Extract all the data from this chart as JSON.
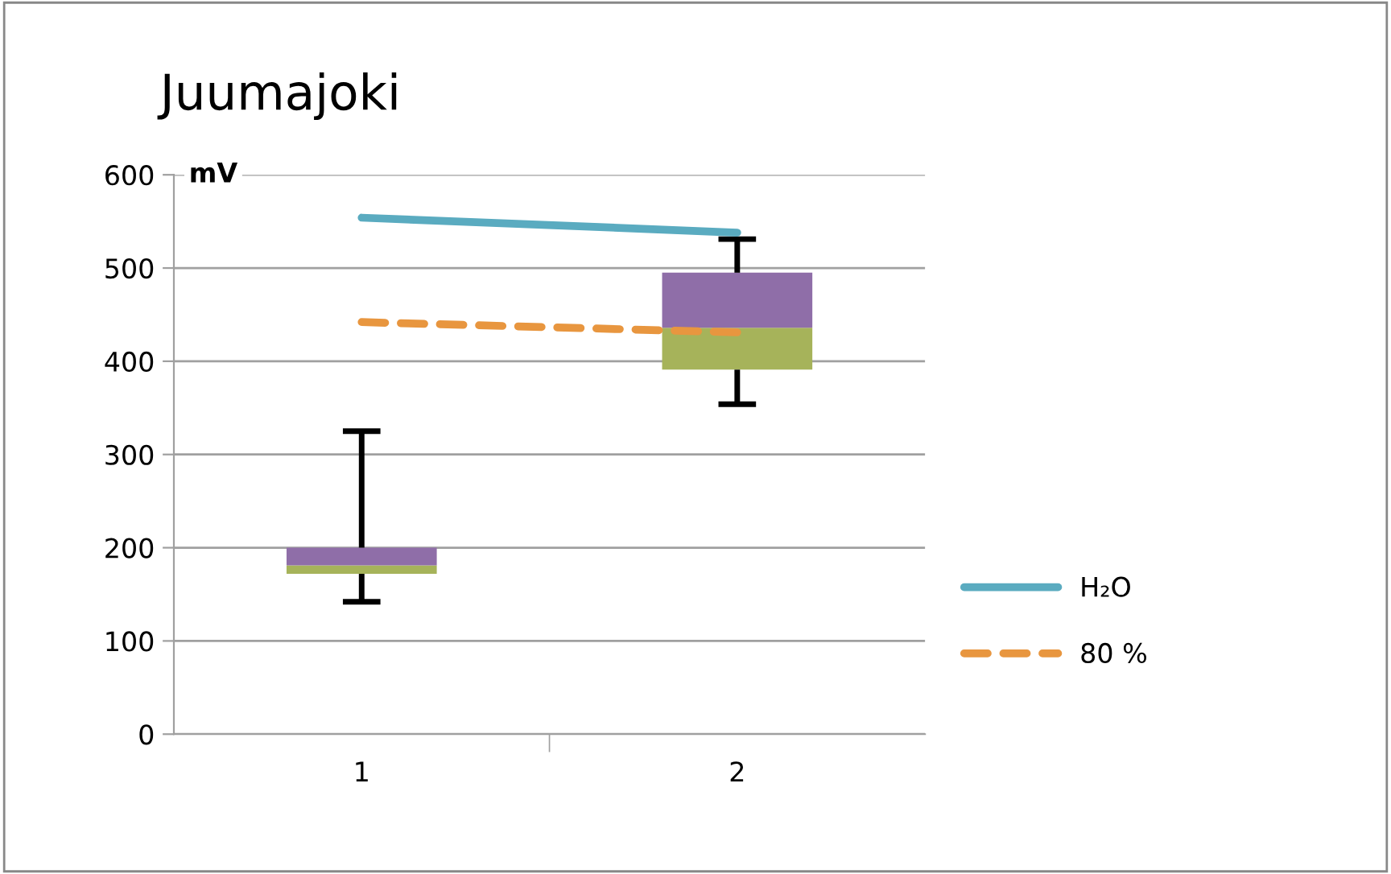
{
  "chart_data": {
    "type": "box",
    "title": "Juumajoki",
    "ylabel": "mV",
    "categories": [
      "1",
      "2"
    ],
    "boxes": [
      {
        "low": 142,
        "q1": 172,
        "median": 181,
        "q3": 200,
        "high": 325
      },
      {
        "low": 354,
        "q1": 391,
        "median": 436,
        "q3": 495,
        "high": 531
      }
    ],
    "colors": [
      [
        "#a6b35a",
        "#8f6ea8"
      ],
      [
        "#a6b35a",
        "#8f6ea8"
      ]
    ],
    "series": [
      {
        "name": "H₂O",
        "type": "line",
        "color": "#5aabc0",
        "line_style": "solid",
        "values": [
          554,
          538
        ]
      },
      {
        "name": "80 %",
        "type": "line",
        "color": "#e8963f",
        "line_style": "dashed",
        "values": [
          442,
          431
        ]
      }
    ],
    "ylim": [
      0,
      600
    ],
    "yticks": [
      0,
      100,
      200,
      300,
      400,
      500,
      600
    ],
    "grid": "y",
    "legend": "right",
    "marker": "none"
  }
}
